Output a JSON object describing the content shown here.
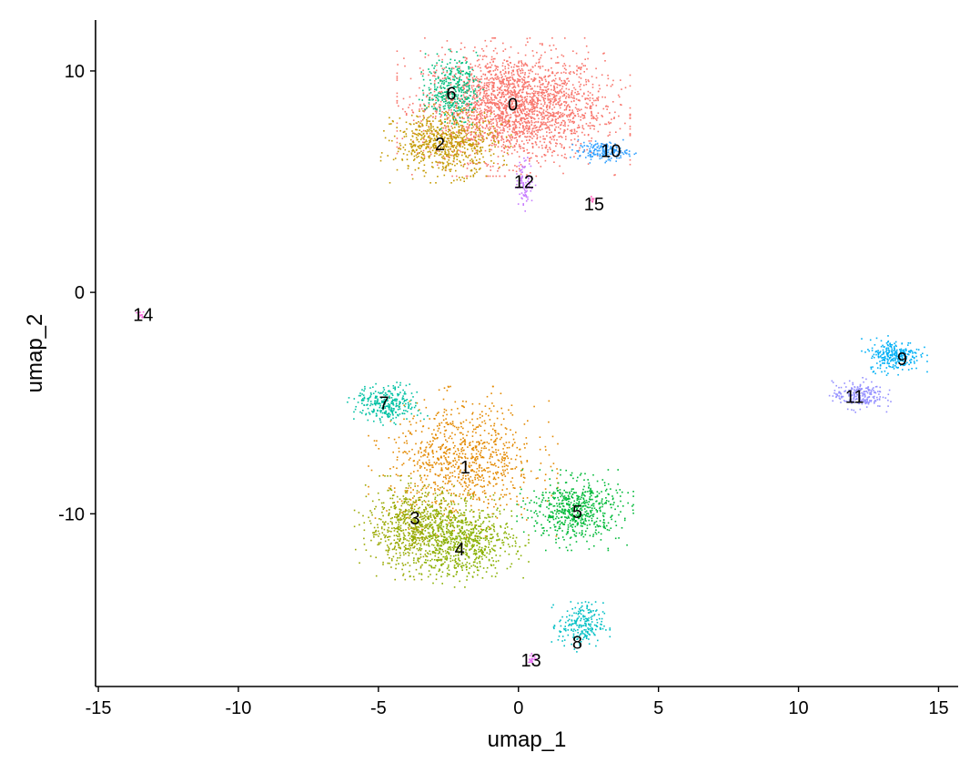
{
  "chart_data": {
    "type": "scatter",
    "xlabel": "umap_1",
    "ylabel": "umap_2",
    "xlim": [
      -15.1,
      15.7
    ],
    "ylim": [
      -17.8,
      12.3
    ],
    "x_ticks": [
      -15,
      -10,
      -5,
      0,
      5,
      10,
      15
    ],
    "y_ticks": [
      -10,
      0,
      10
    ],
    "x_tick_labels": [
      "-15",
      "-10",
      "-5",
      "0",
      "5",
      "10",
      "15"
    ],
    "y_tick_labels": [
      "-10",
      "0",
      "10"
    ],
    "grid": false,
    "legend": "none",
    "clusters": [
      {
        "label": "0",
        "color": "#F8766D",
        "center": [
          -0.2,
          8.4
        ],
        "spread": [
          1.6,
          1.2
        ],
        "n": 2400,
        "label_pos": [
          -0.2,
          8.5
        ]
      },
      {
        "label": "1",
        "color": "#E38900",
        "center": [
          -2.0,
          -7.6
        ],
        "spread": [
          1.3,
          1.3
        ],
        "n": 900,
        "label_pos": [
          -1.9,
          -7.9
        ]
      },
      {
        "label": "2",
        "color": "#C49A00",
        "center": [
          -2.6,
          6.8
        ],
        "spread": [
          0.9,
          0.7
        ],
        "n": 700,
        "label_pos": [
          -2.8,
          6.7
        ]
      },
      {
        "label": "3",
        "color": "#99A800",
        "center": [
          -3.8,
          -10.6
        ],
        "spread": [
          0.8,
          0.9
        ],
        "n": 700,
        "label_pos": [
          -3.7,
          -10.2
        ]
      },
      {
        "label": "4",
        "color": "#89B000",
        "center": [
          -2.0,
          -11.2
        ],
        "spread": [
          0.9,
          0.8
        ],
        "n": 750,
        "label_pos": [
          -2.1,
          -11.6
        ]
      },
      {
        "label": "5",
        "color": "#00BA38",
        "center": [
          2.0,
          -9.8
        ],
        "spread": [
          0.8,
          0.7
        ],
        "n": 600,
        "label_pos": [
          2.1,
          -9.9
        ]
      },
      {
        "label": "6",
        "color": "#00BF7D",
        "center": [
          -2.4,
          9.2
        ],
        "spread": [
          0.45,
          0.7
        ],
        "n": 350,
        "label_pos": [
          -2.4,
          9.0
        ]
      },
      {
        "label": "7",
        "color": "#00C1A3",
        "center": [
          -4.7,
          -5.0
        ],
        "spread": [
          0.55,
          0.4
        ],
        "n": 300,
        "label_pos": [
          -4.8,
          -5.0
        ]
      },
      {
        "label": "8",
        "color": "#00BFC4",
        "center": [
          2.2,
          -15.0
        ],
        "spread": [
          0.4,
          0.5
        ],
        "n": 220,
        "label_pos": [
          2.1,
          -15.8
        ]
      },
      {
        "label": "9",
        "color": "#00B0F6",
        "center": [
          13.4,
          -2.8
        ],
        "spread": [
          0.45,
          0.35
        ],
        "n": 280,
        "label_pos": [
          13.7,
          -3.0
        ]
      },
      {
        "label": "10",
        "color": "#35A2FF",
        "center": [
          3.0,
          6.4
        ],
        "spread": [
          0.45,
          0.2
        ],
        "n": 200,
        "label_pos": [
          3.3,
          6.4
        ]
      },
      {
        "label": "11",
        "color": "#9590FF",
        "center": [
          12.1,
          -4.6
        ],
        "spread": [
          0.45,
          0.3
        ],
        "n": 220,
        "label_pos": [
          12.0,
          -4.7
        ]
      },
      {
        "label": "12",
        "color": "#C77CFF",
        "center": [
          0.2,
          5.0
        ],
        "spread": [
          0.15,
          0.5
        ],
        "n": 90,
        "label_pos": [
          0.2,
          5.0
        ]
      },
      {
        "label": "13",
        "color": "#E76BF3",
        "center": [
          0.5,
          -16.5
        ],
        "spread": [
          0.1,
          0.1
        ],
        "n": 20,
        "label_pos": [
          0.45,
          -16.6
        ]
      },
      {
        "label": "14",
        "color": "#FA62DB",
        "center": [
          -13.5,
          -1.0
        ],
        "spread": [
          0.08,
          0.08
        ],
        "n": 12,
        "label_pos": [
          -13.4,
          -1.0
        ]
      },
      {
        "label": "15",
        "color": "#FF62BC",
        "center": [
          2.6,
          4.2
        ],
        "spread": [
          0.05,
          0.12
        ],
        "n": 10,
        "label_pos": [
          2.7,
          4.0
        ]
      }
    ]
  }
}
